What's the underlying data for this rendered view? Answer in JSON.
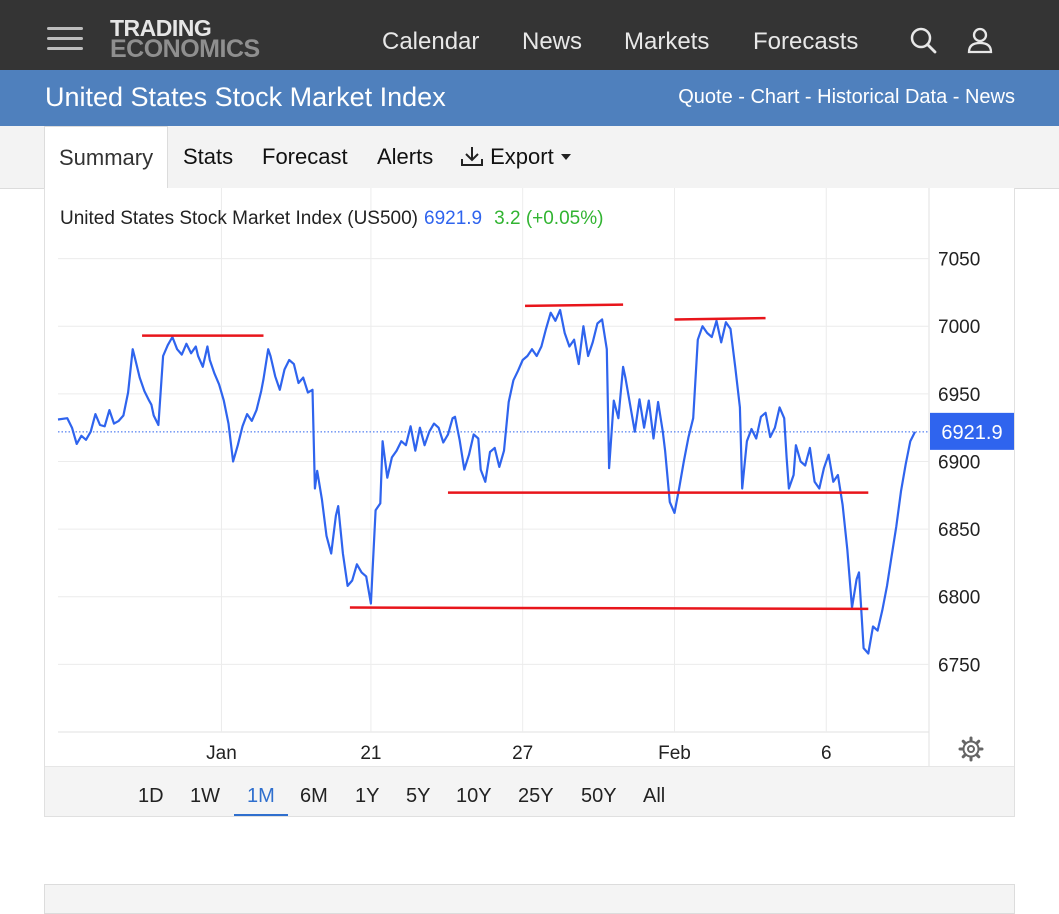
{
  "header": {
    "logo_line1": "TRADING",
    "logo_line2": "ECONOMICS",
    "nav": [
      "Calendar",
      "News",
      "Markets",
      "Forecasts"
    ],
    "icons": [
      "search-icon",
      "user-icon",
      "menu-icon"
    ]
  },
  "banner": {
    "title": "United States Stock Market Index",
    "links": [
      "Quote",
      "Chart",
      "Historical Data",
      "News"
    ],
    "separator": " - "
  },
  "tabs": {
    "items": [
      "Summary",
      "Stats",
      "Forecast",
      "Alerts"
    ],
    "active": "Summary",
    "export_label": "Export",
    "export_icon": "download-icon",
    "export_caret": "caret-down-icon"
  },
  "quote": {
    "name": "United States Stock Market Index (US500)",
    "price": "6921.9",
    "change": "3.2 (+0.05%)"
  },
  "ranges": {
    "items": [
      "1D",
      "1W",
      "1M",
      "6M",
      "1Y",
      "5Y",
      "10Y",
      "25Y",
      "50Y",
      "All"
    ],
    "active": "1M"
  },
  "colors": {
    "topbar": "#343434",
    "banner": "#4f80bd",
    "line": "#2f64ee",
    "annotation": "#e8151b",
    "price_label_bg": "#2f64ee",
    "change_up": "#32b432"
  },
  "chart_data": {
    "type": "line",
    "series": [
      {
        "values": [
          [
            0.0,
            6931
          ],
          [
            0.4,
            6932
          ],
          [
            0.6,
            6925
          ],
          [
            0.8,
            6913
          ],
          [
            1.0,
            6919
          ],
          [
            1.2,
            6916
          ],
          [
            1.4,
            6922
          ],
          [
            1.6,
            6935
          ],
          [
            1.8,
            6927
          ],
          [
            2.0,
            6926
          ],
          [
            2.2,
            6938
          ],
          [
            2.4,
            6928
          ],
          [
            2.6,
            6930
          ],
          [
            2.8,
            6934
          ],
          [
            3.0,
            6951
          ],
          [
            3.2,
            6983
          ],
          [
            3.3,
            6976
          ],
          [
            3.5,
            6962
          ],
          [
            3.7,
            6952
          ],
          [
            3.9,
            6945
          ],
          [
            4.0,
            6942
          ],
          [
            4.1,
            6934
          ],
          [
            4.3,
            6927
          ],
          [
            4.5,
            6978
          ],
          [
            4.7,
            6986
          ],
          [
            4.9,
            6992
          ],
          [
            5.1,
            6983
          ],
          [
            5.3,
            6979
          ],
          [
            5.5,
            6987
          ],
          [
            5.7,
            6980
          ],
          [
            5.9,
            6985
          ],
          [
            6.0,
            6978
          ],
          [
            6.2,
            6970
          ],
          [
            6.4,
            6985
          ],
          [
            6.5,
            6975
          ],
          [
            6.7,
            6965
          ],
          [
            6.9,
            6957
          ],
          [
            7.1,
            6945
          ],
          [
            7.3,
            6928
          ],
          [
            7.5,
            6900
          ],
          [
            7.7,
            6912
          ],
          [
            7.9,
            6926
          ],
          [
            8.1,
            6935
          ],
          [
            8.3,
            6930
          ],
          [
            8.5,
            6938
          ],
          [
            8.7,
            6952
          ],
          [
            8.8,
            6961
          ],
          [
            9.0,
            6983
          ],
          [
            9.1,
            6978
          ],
          [
            9.3,
            6963
          ],
          [
            9.5,
            6953
          ],
          [
            9.7,
            6968
          ],
          [
            9.9,
            6975
          ],
          [
            10.1,
            6972
          ],
          [
            10.3,
            6958
          ],
          [
            10.5,
            6962
          ],
          [
            10.7,
            6951
          ],
          [
            10.9,
            6953
          ],
          [
            11.0,
            6880
          ],
          [
            11.1,
            6893
          ],
          [
            11.3,
            6872
          ],
          [
            11.5,
            6845
          ],
          [
            11.7,
            6832
          ],
          [
            11.9,
            6860
          ],
          [
            12.0,
            6867
          ],
          [
            12.2,
            6832
          ],
          [
            12.4,
            6808
          ],
          [
            12.6,
            6812
          ],
          [
            12.8,
            6824
          ],
          [
            13.0,
            6818
          ],
          [
            13.2,
            6815
          ],
          [
            13.4,
            6795
          ],
          [
            13.6,
            6864
          ],
          [
            13.8,
            6869
          ],
          [
            13.9,
            6915
          ],
          [
            14.1,
            6888
          ],
          [
            14.3,
            6903
          ],
          [
            14.5,
            6908
          ],
          [
            14.7,
            6915
          ],
          [
            14.9,
            6912
          ],
          [
            15.1,
            6926
          ],
          [
            15.3,
            6908
          ],
          [
            15.5,
            6925
          ],
          [
            15.7,
            6912
          ],
          [
            15.9,
            6922
          ],
          [
            16.1,
            6928
          ],
          [
            16.3,
            6925
          ],
          [
            16.5,
            6914
          ],
          [
            16.7,
            6920
          ],
          [
            16.9,
            6932
          ],
          [
            17.0,
            6933
          ],
          [
            17.2,
            6916
          ],
          [
            17.4,
            6894
          ],
          [
            17.6,
            6905
          ],
          [
            17.8,
            6920
          ],
          [
            18.0,
            6917
          ],
          [
            18.1,
            6894
          ],
          [
            18.3,
            6885
          ],
          [
            18.5,
            6907
          ],
          [
            18.7,
            6910
          ],
          [
            18.9,
            6896
          ],
          [
            19.1,
            6908
          ],
          [
            19.3,
            6944
          ],
          [
            19.5,
            6960
          ],
          [
            19.7,
            6967
          ],
          [
            19.9,
            6975
          ],
          [
            20.1,
            6978
          ],
          [
            20.3,
            6983
          ],
          [
            20.5,
            6978
          ],
          [
            20.7,
            6985
          ],
          [
            20.9,
            6998
          ],
          [
            21.1,
            7010
          ],
          [
            21.3,
            7004
          ],
          [
            21.5,
            7012
          ],
          [
            21.7,
            6995
          ],
          [
            21.9,
            6985
          ],
          [
            22.1,
            6990
          ],
          [
            22.3,
            6972
          ],
          [
            22.5,
            7000
          ],
          [
            22.7,
            6978
          ],
          [
            22.9,
            6988
          ],
          [
            23.1,
            7002
          ],
          [
            23.3,
            7005
          ],
          [
            23.5,
            6983
          ],
          [
            23.6,
            6895
          ],
          [
            23.8,
            6945
          ],
          [
            24.0,
            6932
          ],
          [
            24.2,
            6970
          ],
          [
            24.3,
            6962
          ],
          [
            24.5,
            6942
          ],
          [
            24.7,
            6922
          ],
          [
            24.9,
            6946
          ],
          [
            25.1,
            6925
          ],
          [
            25.3,
            6945
          ],
          [
            25.5,
            6917
          ],
          [
            25.7,
            6944
          ],
          [
            25.9,
            6922
          ],
          [
            26.0,
            6908
          ],
          [
            26.2,
            6870
          ],
          [
            26.4,
            6862
          ],
          [
            26.6,
            6880
          ],
          [
            26.8,
            6900
          ],
          [
            27.0,
            6918
          ],
          [
            27.2,
            6932
          ],
          [
            27.4,
            6990
          ],
          [
            27.6,
            7000
          ],
          [
            27.8,
            6995
          ],
          [
            28.0,
            6992
          ],
          [
            28.2,
            7004
          ],
          [
            28.4,
            6988
          ],
          [
            28.6,
            7003
          ],
          [
            28.8,
            6998
          ],
          [
            29.0,
            6970
          ],
          [
            29.2,
            6940
          ],
          [
            29.3,
            6880
          ],
          [
            29.5,
            6915
          ],
          [
            29.7,
            6924
          ],
          [
            29.9,
            6917
          ],
          [
            30.1,
            6933
          ],
          [
            30.3,
            6936
          ],
          [
            30.5,
            6918
          ],
          [
            30.7,
            6925
          ],
          [
            30.9,
            6940
          ],
          [
            31.1,
            6932
          ],
          [
            31.2,
            6903
          ],
          [
            31.3,
            6880
          ],
          [
            31.5,
            6890
          ],
          [
            31.6,
            6912
          ],
          [
            31.8,
            6900
          ],
          [
            32.0,
            6897
          ],
          [
            32.2,
            6910
          ],
          [
            32.4,
            6885
          ],
          [
            32.6,
            6880
          ],
          [
            32.8,
            6895
          ],
          [
            33.0,
            6905
          ],
          [
            33.2,
            6885
          ],
          [
            33.4,
            6890
          ],
          [
            33.6,
            6868
          ],
          [
            33.8,
            6835
          ],
          [
            34.0,
            6792
          ],
          [
            34.2,
            6813
          ],
          [
            34.3,
            6818
          ],
          [
            34.5,
            6762
          ],
          [
            34.7,
            6758
          ],
          [
            34.9,
            6778
          ],
          [
            35.1,
            6775
          ],
          [
            35.3,
            6790
          ],
          [
            35.5,
            6808
          ],
          [
            35.7,
            6830
          ],
          [
            35.9,
            6852
          ],
          [
            36.1,
            6878
          ],
          [
            36.3,
            6898
          ],
          [
            36.5,
            6915
          ],
          [
            36.7,
            6921.9
          ]
        ]
      }
    ],
    "x_ticks": [
      {
        "x": 7.0,
        "label": "Jan"
      },
      {
        "x": 13.4,
        "label": "21"
      },
      {
        "x": 19.9,
        "label": "27"
      },
      {
        "x": 26.4,
        "label": "Feb"
      },
      {
        "x": 32.9,
        "label": "6"
      }
    ],
    "y_ticks": [
      6750,
      6800,
      6850,
      6900,
      6950,
      7000,
      7050
    ],
    "xlim": [
      0,
      36.7
    ],
    "ylim": [
      6700,
      7080
    ],
    "last_value": 6921.9,
    "grid": true,
    "annotations": [
      {
        "x1": 3.6,
        "y1": 6993,
        "x2": 8.8,
        "y2": 6993
      },
      {
        "x1": 20.0,
        "y1": 7015,
        "x2": 24.2,
        "y2": 7016
      },
      {
        "x1": 26.4,
        "y1": 7005,
        "x2": 30.3,
        "y2": 7006
      },
      {
        "x1": 16.7,
        "y1": 6877,
        "x2": 34.7,
        "y2": 6877
      },
      {
        "x1": 12.5,
        "y1": 6792,
        "x2": 34.7,
        "y2": 6791
      }
    ]
  }
}
